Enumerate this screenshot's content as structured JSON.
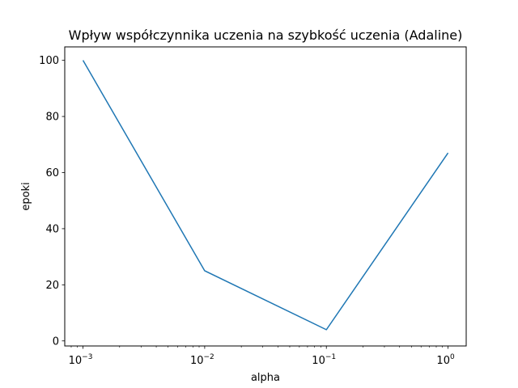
{
  "chart_data": {
    "type": "line",
    "title": "Wpływ współczynnika uczenia na szybkość uczenia (Adaline)",
    "xlabel": "alpha",
    "ylabel": "epoki",
    "x_scale": "log",
    "xlim": [
      0.000708,
      1.41
    ],
    "ylim": [
      -1.8,
      104.8
    ],
    "grid": false,
    "x_ticks": [
      {
        "value": 0.001,
        "base": "10",
        "exp": "−3"
      },
      {
        "value": 0.01,
        "base": "10",
        "exp": "−2"
      },
      {
        "value": 0.1,
        "base": "10",
        "exp": "−1"
      },
      {
        "value": 1,
        "base": "10",
        "exp": "0"
      }
    ],
    "y_ticks": [
      0,
      20,
      40,
      60,
      80,
      100
    ],
    "series": [
      {
        "color": "#1f77b4",
        "x": [
          0.001,
          0.01,
          0.1,
          1
        ],
        "y": [
          100,
          25,
          4,
          67
        ]
      }
    ]
  }
}
